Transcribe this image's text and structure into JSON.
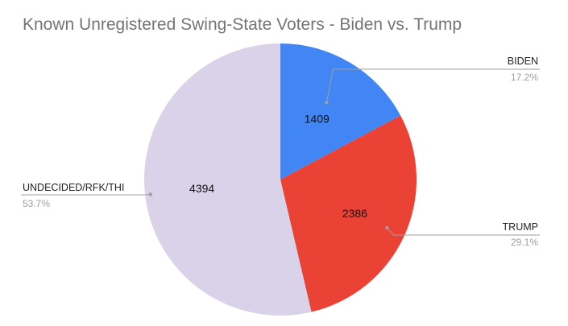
{
  "chart_data": {
    "type": "pie",
    "title": "Known Unregistered Swing-State Voters - Biden vs. Trump",
    "legend": "none",
    "start_angle_deg": 0,
    "slices": [
      {
        "label": "BIDEN",
        "value": 1409,
        "percent_label": "17.2%",
        "color": "#4285f4"
      },
      {
        "label": "TRUMP",
        "value": 2386,
        "percent_label": "29.1%",
        "color": "#ea4335"
      },
      {
        "label": "UNDECIDED/RFK/THI",
        "value": 4394,
        "percent_label": "53.7%",
        "color": "#d9d2e9"
      }
    ]
  }
}
